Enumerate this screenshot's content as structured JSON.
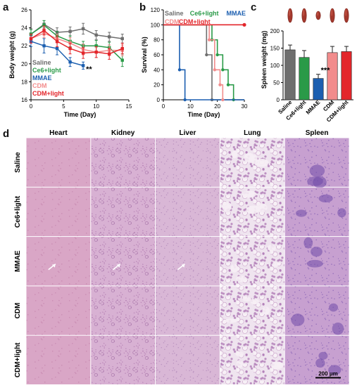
{
  "panels": {
    "a": "a",
    "b": "b",
    "c": "c",
    "d": "d"
  },
  "colors": {
    "Saline": "#6e6e6e",
    "Ce6+light": "#2a9a48",
    "MMAE": "#1c5fb0",
    "CDM": "#f28c8c",
    "CDM+light": "#e3262b"
  },
  "chart_data": [
    {
      "panel": "a",
      "type": "line",
      "xlabel": "Time (Day)",
      "ylabel": "Body weight (g)",
      "xlim": [
        0,
        15
      ],
      "ylim": [
        16,
        26
      ],
      "xticks": [
        0,
        5,
        10,
        15
      ],
      "yticks": [
        16,
        18,
        20,
        22,
        24,
        26
      ],
      "legend": "bottom-left",
      "series": [
        {
          "name": "Saline",
          "x": [
            0,
            2,
            4,
            6,
            8,
            10,
            12,
            14
          ],
          "y": [
            23.3,
            24.4,
            23.5,
            23.6,
            23.9,
            23.2,
            23.0,
            22.8
          ],
          "err": [
            0.6,
            0.4,
            0.5,
            0.5,
            0.6,
            0.5,
            0.5,
            0.5
          ]
        },
        {
          "name": "Ce6+light",
          "x": [
            0,
            2,
            4,
            6,
            8,
            10,
            12,
            14
          ],
          "y": [
            23.3,
            24.3,
            23.1,
            22.5,
            22.0,
            22.0,
            21.8,
            20.4
          ],
          "err": [
            0.5,
            0.5,
            0.5,
            0.6,
            0.5,
            0.6,
            0.6,
            0.7
          ]
        },
        {
          "name": "MMAE",
          "x": [
            0,
            2,
            4,
            6,
            8
          ],
          "y": [
            22.5,
            22.0,
            21.7,
            20.2,
            19.8
          ],
          "err": [
            0.6,
            0.8,
            0.7,
            0.5,
            0.4
          ]
        },
        {
          "name": "CDM",
          "x": [
            0,
            2,
            4,
            6,
            8,
            10,
            12,
            14
          ],
          "y": [
            22.8,
            23.4,
            22.8,
            22.3,
            21.6,
            21.3,
            21.5,
            21.5
          ],
          "err": [
            0.5,
            0.5,
            0.5,
            0.6,
            0.6,
            0.6,
            0.6,
            0.6
          ]
        },
        {
          "name": "CDM+light",
          "x": [
            0,
            2,
            4,
            6,
            8,
            10,
            12,
            14
          ],
          "y": [
            22.8,
            23.7,
            22.5,
            21.7,
            21.2,
            21.3,
            21.1,
            21.7
          ],
          "err": [
            0.5,
            0.5,
            0.6,
            0.6,
            0.6,
            0.6,
            0.6,
            0.6
          ]
        }
      ],
      "annotations": [
        {
          "text": "**",
          "x": 8,
          "y": 19.5
        }
      ]
    },
    {
      "panel": "b",
      "type": "line",
      "xlabel": "Time (Day)",
      "ylabel": "Survival (%)",
      "xlim": [
        0,
        30
      ],
      "ylim": [
        0,
        120
      ],
      "xticks": [
        0,
        10,
        20,
        30
      ],
      "yticks": [
        0,
        20,
        40,
        60,
        80,
        100,
        120
      ],
      "legend": "top",
      "series": [
        {
          "name": "Saline",
          "x": [
            0,
            16,
            16,
            18,
            18,
            30
          ],
          "y": [
            100,
            100,
            60,
            60,
            0,
            0
          ]
        },
        {
          "name": "Ce6+light",
          "x": [
            0,
            18,
            18,
            20,
            20,
            22,
            22,
            24,
            24,
            26,
            26
          ],
          "y": [
            100,
            100,
            80,
            80,
            60,
            60,
            40,
            40,
            20,
            20,
            0
          ]
        },
        {
          "name": "MMAE",
          "x": [
            0,
            6,
            6,
            8,
            8,
            30
          ],
          "y": [
            100,
            100,
            40,
            40,
            0,
            0
          ]
        },
        {
          "name": "CDM",
          "x": [
            0,
            17,
            17,
            19,
            19,
            21,
            21,
            22,
            22
          ],
          "y": [
            100,
            100,
            80,
            80,
            40,
            40,
            20,
            20,
            0
          ]
        },
        {
          "name": "CDM+light",
          "x": [
            0,
            30
          ],
          "y": [
            100,
            100
          ]
        }
      ]
    },
    {
      "panel": "c",
      "type": "bar",
      "ylabel": "Spleen weight (mg)",
      "categories": [
        "Saline",
        "Ce6+light",
        "MMAE",
        "CDM",
        "CDM+light"
      ],
      "values": [
        145,
        123,
        62,
        137,
        140
      ],
      "err": [
        14,
        20,
        12,
        18,
        15
      ],
      "ylim": [
        0,
        200
      ],
      "yticks": [
        0,
        50,
        100,
        150,
        200
      ],
      "annotations": [
        {
          "text": "***",
          "category": "MMAE"
        }
      ]
    }
  ],
  "histology": {
    "organs": [
      "Heart",
      "Kidney",
      "Liver",
      "Lung",
      "Spleen"
    ],
    "groups": [
      "Saline",
      "Ce6+light",
      "MMAE",
      "CDM",
      "CDM+light"
    ],
    "scalebar": "200 μm"
  }
}
